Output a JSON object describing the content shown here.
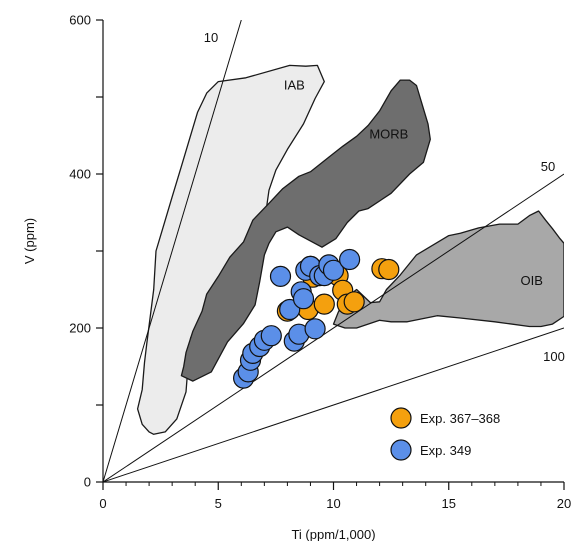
{
  "chart_data": {
    "type": "scatter",
    "xlabel": "Ti (ppm/1,000)",
    "ylabel": "V (ppm)",
    "xlim": [
      0,
      20
    ],
    "ylim": [
      0,
      600
    ],
    "x_ticks": [
      "0",
      "5",
      "10",
      "15",
      "20"
    ],
    "y_ticks": [
      "0",
      "200",
      "400",
      "600"
    ],
    "ratio_lines": [
      {
        "ratio": 10,
        "label": "10"
      },
      {
        "ratio": 50,
        "label": "50"
      },
      {
        "ratio": 100,
        "label": "100"
      }
    ],
    "fields": [
      {
        "name": "IAB",
        "color": "#ececec",
        "label_at": [
          8.3,
          510
        ],
        "polygon": [
          [
            5.0,
            520
          ],
          [
            6.2,
            525
          ],
          [
            8.1,
            541
          ],
          [
            8.8,
            540
          ],
          [
            9.3,
            541
          ],
          [
            9.6,
            520
          ],
          [
            9.2,
            498
          ],
          [
            8.7,
            465
          ],
          [
            8.0,
            432
          ],
          [
            7.5,
            405
          ],
          [
            7.2,
            379
          ],
          [
            7.1,
            358
          ],
          [
            7.0,
            343
          ],
          [
            6.9,
            321
          ],
          [
            6.8,
            292
          ],
          [
            6.5,
            265
          ],
          [
            5.6,
            247
          ],
          [
            4.8,
            232
          ],
          [
            4.2,
            212
          ],
          [
            3.8,
            187
          ],
          [
            3.7,
            155
          ],
          [
            3.6,
            117
          ],
          [
            3.2,
            82
          ],
          [
            2.7,
            65
          ],
          [
            2.2,
            62
          ],
          [
            2.0,
            65
          ],
          [
            1.7,
            75
          ],
          [
            1.5,
            95
          ],
          [
            1.7,
            120
          ],
          [
            1.8,
            155
          ],
          [
            1.9,
            180
          ],
          [
            2.2,
            250
          ],
          [
            2.3,
            300
          ],
          [
            2.6,
            330
          ],
          [
            3.0,
            370
          ],
          [
            3.4,
            410
          ],
          [
            3.7,
            440
          ],
          [
            4.1,
            480
          ],
          [
            4.5,
            505
          ]
        ]
      },
      {
        "name": "MORB",
        "color": "#6e6e6e",
        "label_at": [
          12.4,
          446
        ],
        "polygon": [
          [
            3.4,
            138
          ],
          [
            3.9,
            131
          ],
          [
            4.7,
            143
          ],
          [
            5.4,
            182
          ],
          [
            6.1,
            206
          ],
          [
            6.6,
            230
          ],
          [
            6.8,
            260
          ],
          [
            7.0,
            295
          ],
          [
            7.2,
            310
          ],
          [
            7.5,
            325
          ],
          [
            8.0,
            331
          ],
          [
            8.5,
            321
          ],
          [
            9.5,
            305
          ],
          [
            10.1,
            316
          ],
          [
            10.6,
            337
          ],
          [
            11.1,
            352
          ],
          [
            11.5,
            355
          ],
          [
            12.5,
            375
          ],
          [
            13.3,
            400
          ],
          [
            13.9,
            415
          ],
          [
            14.2,
            445
          ],
          [
            14.1,
            465
          ],
          [
            13.8,
            495
          ],
          [
            13.6,
            515
          ],
          [
            13.3,
            522
          ],
          [
            12.9,
            522
          ],
          [
            12.5,
            508
          ],
          [
            12.0,
            482
          ],
          [
            11.5,
            463
          ],
          [
            11.0,
            449
          ],
          [
            10.4,
            436
          ],
          [
            9.8,
            422
          ],
          [
            9.0,
            403
          ],
          [
            8.5,
            397
          ],
          [
            7.8,
            381
          ],
          [
            7.2,
            362
          ],
          [
            6.5,
            340
          ],
          [
            6.1,
            312
          ],
          [
            5.5,
            292
          ],
          [
            5.0,
            267
          ],
          [
            4.5,
            244
          ],
          [
            4.3,
            222
          ],
          [
            3.9,
            196
          ],
          [
            3.6,
            168
          ],
          [
            3.5,
            150
          ]
        ]
      },
      {
        "name": "OIB",
        "color": "#a8a8a8",
        "label_at": [
          18.6,
          256
        ],
        "polygon": [
          [
            11.0,
            250
          ],
          [
            11.6,
            233
          ],
          [
            12.0,
            234
          ],
          [
            12.3,
            250
          ],
          [
            12.9,
            269
          ],
          [
            13.6,
            295
          ],
          [
            15.0,
            320
          ],
          [
            15.5,
            323
          ],
          [
            16.3,
            330
          ],
          [
            17.2,
            335
          ],
          [
            18.0,
            335
          ],
          [
            18.5,
            346
          ],
          [
            18.9,
            352
          ],
          [
            19.2,
            340
          ],
          [
            19.5,
            329
          ],
          [
            19.8,
            317
          ],
          [
            20.0,
            310
          ],
          [
            20.0,
            215
          ],
          [
            19.5,
            205
          ],
          [
            19.0,
            202
          ],
          [
            18.5,
            202
          ],
          [
            17.0,
            208
          ],
          [
            15.5,
            213
          ],
          [
            14.5,
            216
          ],
          [
            13.2,
            208
          ],
          [
            12.5,
            208
          ],
          [
            12.0,
            210
          ],
          [
            11.5,
            205
          ],
          [
            11.0,
            200
          ],
          [
            10.5,
            200
          ],
          [
            10.0,
            205
          ],
          [
            10.2,
            220
          ],
          [
            10.5,
            238
          ]
        ]
      }
    ],
    "series": [
      {
        "name": "Exp. 367–368",
        "color": "#f4a00e",
        "points": [
          [
            8.0,
            222
          ],
          [
            8.9,
            224
          ],
          [
            9.0,
            280
          ],
          [
            9.1,
            266
          ],
          [
            9.6,
            231
          ],
          [
            9.8,
            273
          ],
          [
            10.2,
            268
          ],
          [
            10.4,
            249
          ],
          [
            10.6,
            231
          ],
          [
            10.9,
            234
          ],
          [
            12.1,
            277
          ],
          [
            12.4,
            276
          ]
        ]
      },
      {
        "name": "Exp. 349",
        "color": "#5b8fe8",
        "points": [
          [
            6.1,
            135
          ],
          [
            6.3,
            143
          ],
          [
            6.4,
            158
          ],
          [
            6.5,
            167
          ],
          [
            6.8,
            176
          ],
          [
            7.0,
            184
          ],
          [
            7.3,
            190
          ],
          [
            7.7,
            267
          ],
          [
            8.1,
            224
          ],
          [
            8.3,
            183
          ],
          [
            8.5,
            192
          ],
          [
            8.6,
            247
          ],
          [
            8.7,
            238
          ],
          [
            8.8,
            275
          ],
          [
            9.0,
            280
          ],
          [
            9.2,
            199
          ],
          [
            9.4,
            268
          ],
          [
            9.6,
            268
          ],
          [
            9.8,
            282
          ],
          [
            10.0,
            275
          ],
          [
            10.7,
            289
          ]
        ]
      }
    ]
  }
}
